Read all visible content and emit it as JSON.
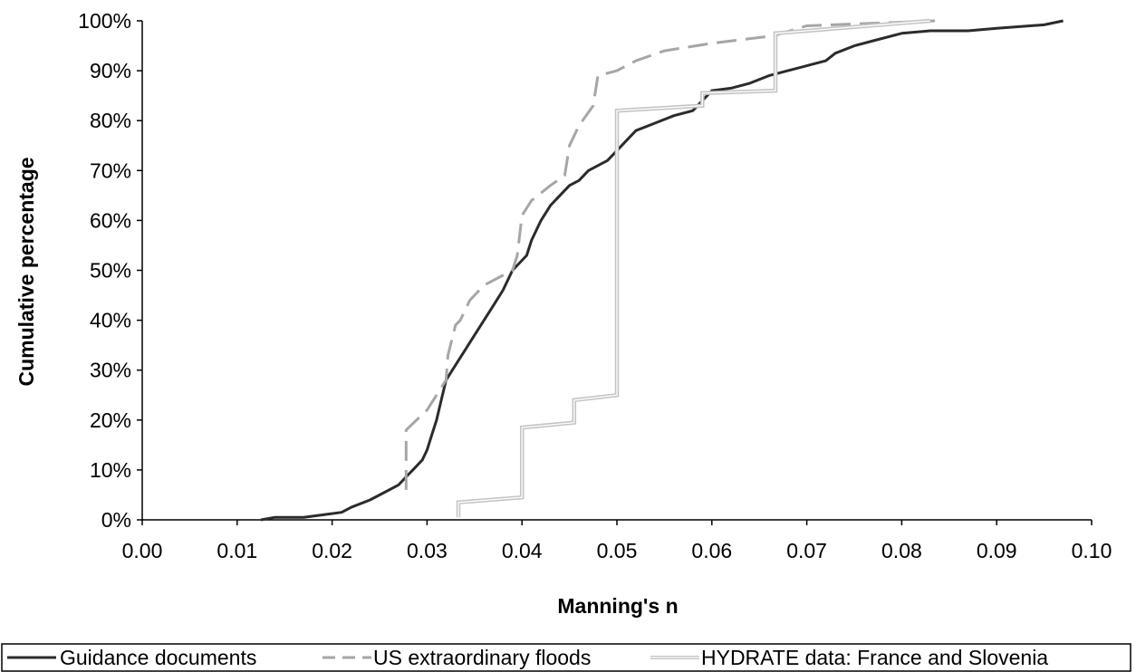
{
  "chart_data": {
    "type": "line",
    "xlabel": "Manning's n",
    "ylabel": "Cumulative percentage",
    "xlim": [
      0.0,
      0.1
    ],
    "ylim": [
      0,
      100
    ],
    "x_ticks": [
      0.0,
      0.01,
      0.02,
      0.03,
      0.04,
      0.05,
      0.06,
      0.07,
      0.08,
      0.09,
      0.1
    ],
    "x_tick_labels": [
      "0.00",
      "0.01",
      "0.02",
      "0.03",
      "0.04",
      "0.05",
      "0.06",
      "0.07",
      "0.08",
      "0.09",
      "0.10"
    ],
    "y_ticks": [
      0,
      10,
      20,
      30,
      40,
      50,
      60,
      70,
      80,
      90,
      100
    ],
    "y_tick_labels": [
      "0%",
      "10%",
      "20%",
      "30%",
      "40%",
      "50%",
      "60%",
      "70%",
      "80%",
      "90%",
      "100%"
    ],
    "grid": false,
    "legend_position": "bottom",
    "series": [
      {
        "name": "Guidance documents",
        "color": "#2b2b2b",
        "style": "solid",
        "points": [
          [
            0.0125,
            0
          ],
          [
            0.014,
            0.5
          ],
          [
            0.017,
            0.5
          ],
          [
            0.019,
            1
          ],
          [
            0.021,
            1.5
          ],
          [
            0.022,
            2.5
          ],
          [
            0.024,
            4
          ],
          [
            0.025,
            5
          ],
          [
            0.027,
            7
          ],
          [
            0.028,
            9
          ],
          [
            0.0285,
            10
          ],
          [
            0.0295,
            12
          ],
          [
            0.03,
            14
          ],
          [
            0.0305,
            17
          ],
          [
            0.031,
            20
          ],
          [
            0.0315,
            24
          ],
          [
            0.032,
            28
          ],
          [
            0.033,
            31
          ],
          [
            0.034,
            34
          ],
          [
            0.035,
            37
          ],
          [
            0.036,
            40
          ],
          [
            0.037,
            43
          ],
          [
            0.038,
            46
          ],
          [
            0.039,
            50
          ],
          [
            0.04,
            52
          ],
          [
            0.0405,
            53
          ],
          [
            0.041,
            56
          ],
          [
            0.042,
            60
          ],
          [
            0.043,
            63
          ],
          [
            0.044,
            65
          ],
          [
            0.045,
            67
          ],
          [
            0.046,
            68
          ],
          [
            0.047,
            70
          ],
          [
            0.048,
            71
          ],
          [
            0.049,
            72
          ],
          [
            0.05,
            74
          ],
          [
            0.051,
            76
          ],
          [
            0.052,
            78
          ],
          [
            0.054,
            79.5
          ],
          [
            0.056,
            81
          ],
          [
            0.058,
            82
          ],
          [
            0.059,
            84
          ],
          [
            0.06,
            86
          ],
          [
            0.062,
            86.5
          ],
          [
            0.064,
            87.5
          ],
          [
            0.066,
            89
          ],
          [
            0.068,
            90
          ],
          [
            0.07,
            91
          ],
          [
            0.072,
            92
          ],
          [
            0.073,
            93.5
          ],
          [
            0.075,
            95
          ],
          [
            0.077,
            96
          ],
          [
            0.08,
            97.5
          ],
          [
            0.083,
            98
          ],
          [
            0.087,
            98
          ],
          [
            0.09,
            98.5
          ],
          [
            0.095,
            99.2
          ],
          [
            0.097,
            100
          ]
        ]
      },
      {
        "name": "US extraordinary floods",
        "color": "#a6a6a6",
        "style": "dashed",
        "points": [
          [
            0.0278,
            6
          ],
          [
            0.0278,
            18
          ],
          [
            0.03,
            22
          ],
          [
            0.032,
            28
          ],
          [
            0.0322,
            33
          ],
          [
            0.033,
            39
          ],
          [
            0.0335,
            40
          ],
          [
            0.0345,
            44
          ],
          [
            0.036,
            47
          ],
          [
            0.038,
            49
          ],
          [
            0.039,
            50
          ],
          [
            0.0395,
            53
          ],
          [
            0.04,
            61
          ],
          [
            0.041,
            64
          ],
          [
            0.043,
            67
          ],
          [
            0.0445,
            69
          ],
          [
            0.045,
            75
          ],
          [
            0.046,
            79
          ],
          [
            0.0475,
            83
          ],
          [
            0.048,
            89
          ],
          [
            0.05,
            90
          ],
          [
            0.052,
            92
          ],
          [
            0.055,
            94
          ],
          [
            0.06,
            95.5
          ],
          [
            0.0665,
            97
          ],
          [
            0.07,
            99
          ],
          [
            0.0835,
            100
          ]
        ]
      },
      {
        "name": "HYDRATE data: France and Slovenia",
        "color": "#c4c4c4",
        "style": "double",
        "points": [
          [
            0.0333,
            0.5
          ],
          [
            0.0333,
            3.5
          ],
          [
            0.04,
            4.5
          ],
          [
            0.04,
            18.5
          ],
          [
            0.0455,
            19.5
          ],
          [
            0.0455,
            24
          ],
          [
            0.05,
            25
          ],
          [
            0.05,
            82
          ],
          [
            0.059,
            83
          ],
          [
            0.059,
            85.5
          ],
          [
            0.0667,
            86
          ],
          [
            0.0667,
            97.5
          ],
          [
            0.083,
            100
          ]
        ]
      }
    ]
  }
}
